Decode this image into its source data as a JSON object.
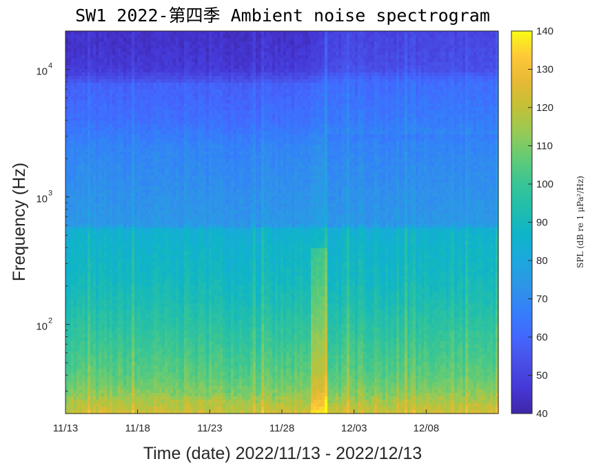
{
  "chart_data": {
    "type": "heatmap",
    "title": "SW1 2022-第四季 Ambient noise spectrogram",
    "xlabel": "Time (date) 2022/11/13 - 2022/12/13",
    "ylabel": "Frequency (Hz)",
    "x_range": [
      "2022-11-13",
      "2022-12-13"
    ],
    "x_ticks": [
      {
        "date": "2022-11-13",
        "label": "11/13"
      },
      {
        "date": "2022-11-18",
        "label": "11/18"
      },
      {
        "date": "2022-11-23",
        "label": "11/23"
      },
      {
        "date": "2022-11-28",
        "label": "11/28"
      },
      {
        "date": "2022-12-03",
        "label": "12/03"
      },
      {
        "date": "2022-12-08",
        "label": "12/08"
      }
    ],
    "y_scale": "log",
    "ylim": [
      20,
      20000
    ],
    "y_ticks": [
      {
        "value": 100,
        "label": "10",
        "exp": "2"
      },
      {
        "value": 1000,
        "label": "10",
        "exp": "3"
      },
      {
        "value": 10000,
        "label": "10",
        "exp": "4"
      }
    ],
    "colorbar": {
      "colormap": "parula",
      "range": [
        40,
        140
      ],
      "ticks": [
        40,
        50,
        60,
        70,
        80,
        90,
        100,
        110,
        120,
        130,
        140
      ],
      "label": "SPL (dB re 1 μPa²/Hz)"
    },
    "spectral_profile": {
      "frequency_hz": [
        20,
        25,
        30,
        40,
        60,
        100,
        150,
        250,
        400,
        550,
        600,
        1000,
        2000,
        2500,
        4000,
        8000,
        10000,
        15000,
        20000
      ],
      "spl_db": [
        122,
        116,
        110,
        105,
        101,
        96,
        92,
        88,
        86,
        84,
        74,
        72,
        69,
        68,
        62,
        58,
        50,
        48,
        47
      ]
    },
    "events": [
      {
        "start": "2022-11-30",
        "end": "2022-12-01",
        "note": "broadband high-level episode"
      }
    ]
  }
}
